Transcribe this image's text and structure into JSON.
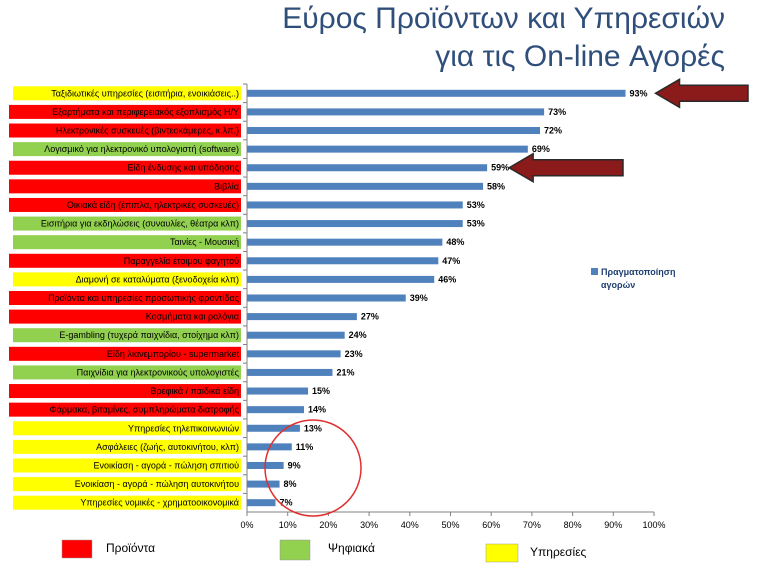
{
  "title_line1": "Εύρος Προϊόντων και Υπηρεσιών",
  "title_line2": "για τις On-line Αγορές",
  "chart_data": {
    "type": "bar",
    "orientation": "horizontal",
    "categories": [
      "Ταξιδιωτικές υπηρεσίες (εισιτήρια, ενοικιάσεις..)",
      "Εξαρτήματα και περιφερειακός εξοπλισμός Η/Υ",
      "Ηλεκτρονικές συσκευές (βιντεοκάμερες, κ.λπ.)",
      "Λογισμικό για ηλεκτρονικό υπολογιστή (software)",
      "Είδη ένδυσης και υπόδησης",
      "Βιβλία",
      "Οικιακά είδη (έπιπλα, ηλεκτρικές συσκευές)",
      "Εισιτήρια για εκδηλώσεις (συναυλίες, θέατρα κλπ)",
      "Ταινίες - Μουσική",
      "Παραγγελία έτοιμου φαγητού",
      "Διαμονή σε καταλύματα (ξενοδοχεία κλπ)",
      "Προϊόντα και υπηρεσίες προσωπικής φροντίδας",
      "Κοσμήματα και ρολόγια",
      "E-gambling (τυχερά παιχνίδια, στοίχημα κλπ)",
      "Είδη λιανεμπορίου - supermarket",
      "Παιχνίδια για ηλεκτρονικούς υπολογιστές",
      "Βρεφικά / παιδικά είδη",
      "Φάρμακα, βιταμίνες, συμπληρώματα διατροφής",
      "Υπηρεσίες τηλεπικοινωνιών",
      "Ασφάλειες (ζωής, αυτοκινήτου, κλπ)",
      "Ενοικίαση - αγορά - πώληση σπιτιού",
      "Ενοικίαση - αγορά - πώληση αυτοκινήτου",
      "Υπηρεσίες νομικές - χρηματοοικονομικά"
    ],
    "groups": [
      "yellow",
      "red",
      "red",
      "green",
      "red",
      "red",
      "red",
      "green",
      "green",
      "red",
      "yellow",
      "red",
      "red",
      "green",
      "red",
      "green",
      "red",
      "red",
      "yellow",
      "yellow",
      "yellow",
      "yellow",
      "yellow"
    ],
    "values": [
      93,
      73,
      72,
      69,
      59,
      58,
      53,
      53,
      48,
      47,
      46,
      39,
      27,
      24,
      23,
      21,
      15,
      14,
      13,
      11,
      9,
      8,
      7
    ],
    "value_labels": [
      "93%",
      "73%",
      "72%",
      "69%",
      "59%",
      "58%",
      "53%",
      "53%",
      "48%",
      "47%",
      "46%",
      "39%",
      "27%",
      "24%",
      "23%",
      "21%",
      "15%",
      "14%",
      "13%",
      "11%",
      "9%",
      "8%",
      "7%"
    ],
    "xlim": [
      0,
      100
    ],
    "x_ticks": [
      "0%",
      "10%",
      "20%",
      "30%",
      "40%",
      "50%",
      "60%",
      "70%",
      "80%",
      "90%",
      "100%"
    ],
    "series": [
      {
        "name": "Πραγματοποίηση αγορών"
      }
    ],
    "legend_position": "right",
    "bar_color": "#4f81bd",
    "group_colors": {
      "red": "#ff0000",
      "green": "#92d050",
      "yellow": "#ffff00"
    },
    "key": [
      {
        "label": "Προϊόντα",
        "group": "red"
      },
      {
        "label": "Ψηφιακά",
        "group": "green"
      },
      {
        "label": "Υπηρεσίες",
        "group": "yellow"
      }
    ],
    "highlight_arrows_at": [
      0,
      4
    ]
  }
}
